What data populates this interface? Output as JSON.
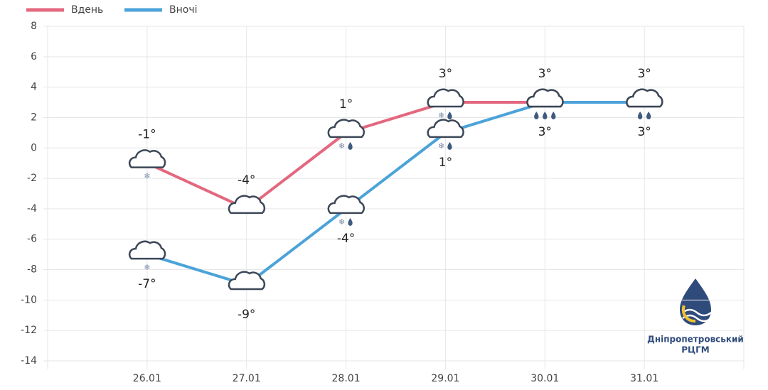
{
  "chart_data": {
    "type": "line",
    "categories": [
      "26.01",
      "27.01",
      "28.01",
      "29.01",
      "30.01",
      "31.01"
    ],
    "series": [
      {
        "name": "Вдень",
        "color": "#e3687f",
        "values": [
          -1,
          -4,
          1,
          3,
          3,
          3
        ],
        "value_labels": [
          "-1°",
          "-4°",
          "1°",
          "3°",
          "3°",
          "3°"
        ]
      },
      {
        "name": "Вночі",
        "color": "#4ba3d9",
        "values": [
          -7,
          -9,
          -4,
          1,
          3,
          3
        ],
        "value_labels": [
          "-7°",
          "-9°",
          "-4°",
          "1°",
          "3°",
          "3°"
        ]
      }
    ],
    "ylim": [
      -14,
      8
    ],
    "yticks": [
      -14,
      -12,
      -10,
      -8,
      -6,
      -4,
      -2,
      0,
      2,
      4,
      6,
      8
    ],
    "grid": true,
    "legend": "top-left"
  },
  "logo": [
    "Дніпропетровський",
    "РЦГМ"
  ]
}
